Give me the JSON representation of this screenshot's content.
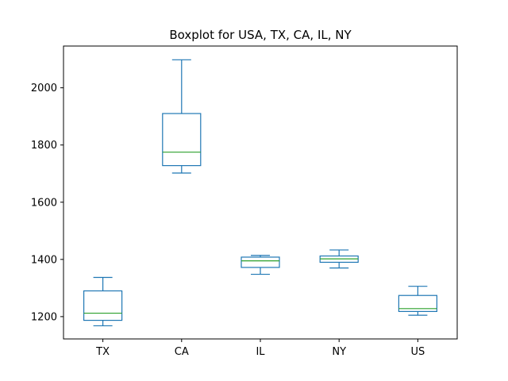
{
  "chart_data": {
    "type": "box",
    "title": "Boxplot for USA, TX, CA, IL, NY",
    "xlabel": "",
    "ylabel": "",
    "categories": [
      "TX",
      "CA",
      "IL",
      "NY",
      "US"
    ],
    "boxes": [
      {
        "name": "TX",
        "min": 1168,
        "q1": 1187,
        "median": 1212,
        "q3": 1290,
        "max": 1337
      },
      {
        "name": "CA",
        "min": 1702,
        "q1": 1728,
        "median": 1775,
        "q3": 1910,
        "max": 2098
      },
      {
        "name": "IL",
        "min": 1348,
        "q1": 1372,
        "median": 1395,
        "q3": 1408,
        "max": 1414
      },
      {
        "name": "NY",
        "min": 1370,
        "q1": 1390,
        "median": 1402,
        "q3": 1412,
        "max": 1433
      },
      {
        "name": "US",
        "min": 1205,
        "q1": 1218,
        "median": 1228,
        "q3": 1274,
        "max": 1306
      }
    ],
    "yticks": [
      1200,
      1400,
      1600,
      1800,
      2000
    ],
    "ylim": [
      1122,
      2146
    ],
    "grid": false,
    "colors": {
      "box": "#1f77b4",
      "median": "#2ca02c",
      "axis": "#000000"
    }
  }
}
